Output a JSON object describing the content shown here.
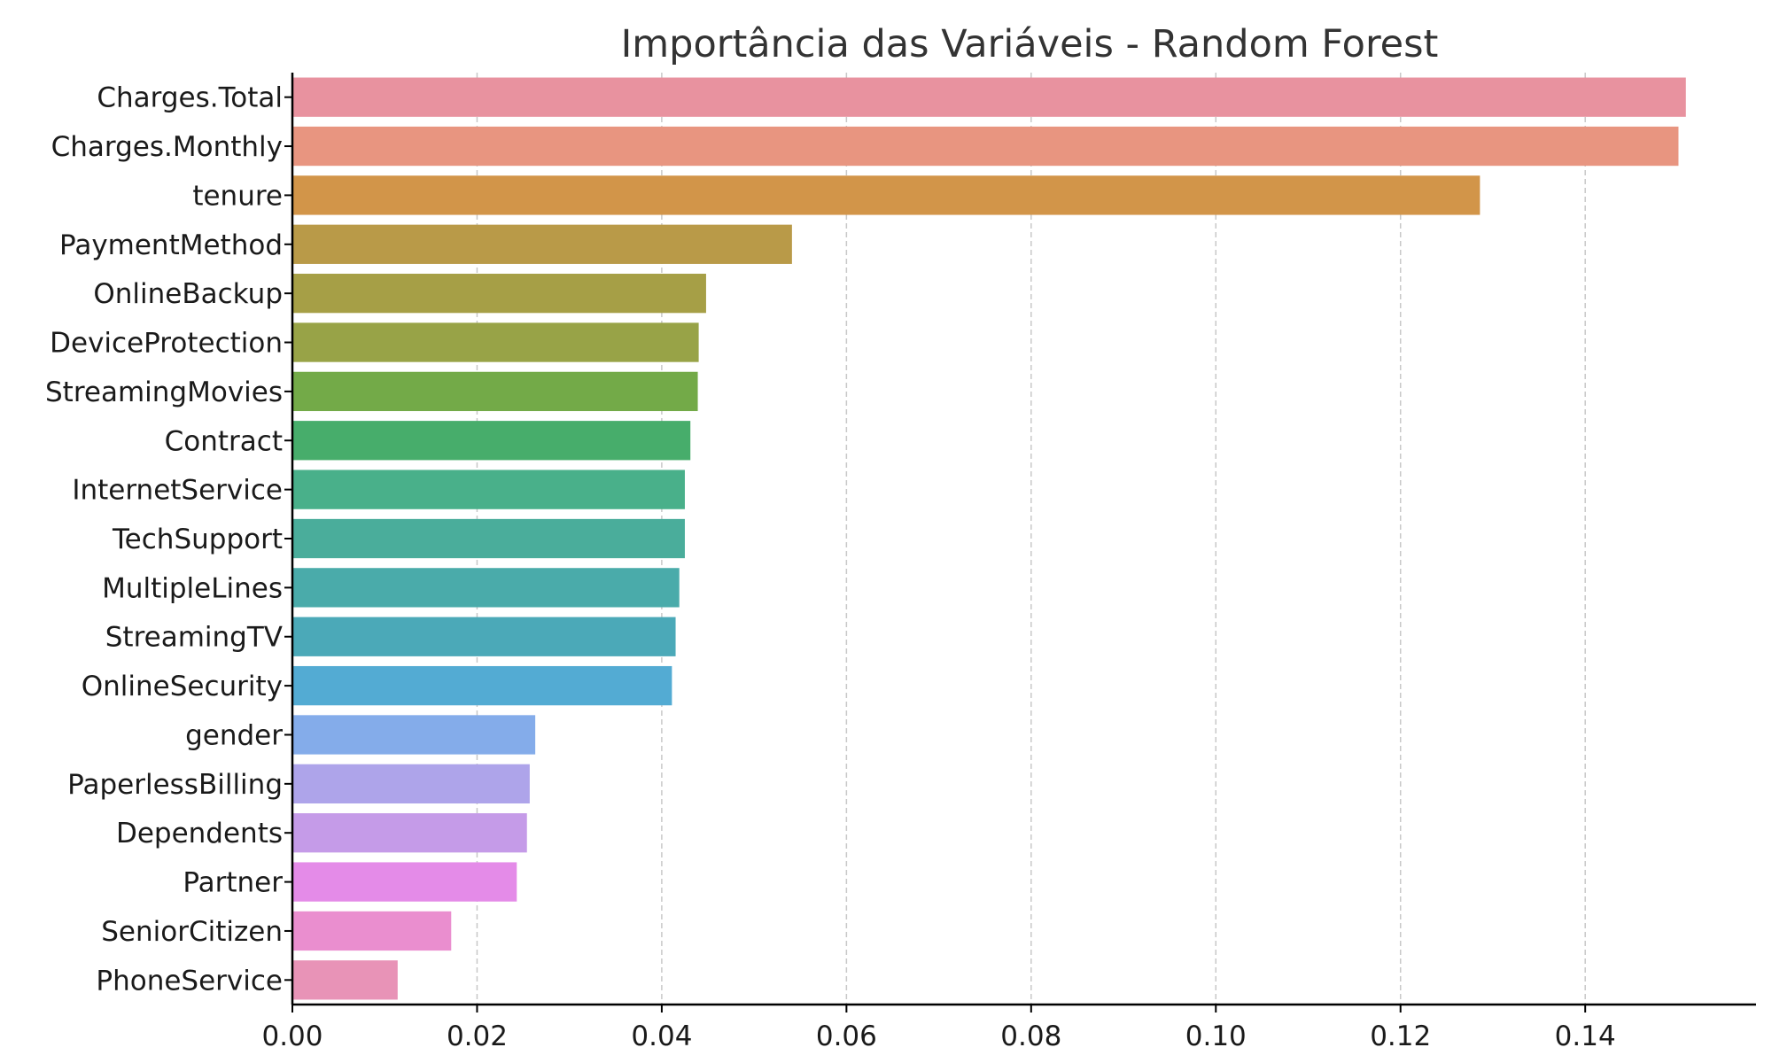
{
  "chart_data": {
    "type": "bar",
    "orientation": "horizontal",
    "title": "Importância das Variáveis - Random Forest",
    "xlabel": "",
    "ylabel": "",
    "xlim": [
      0,
      0.1585
    ],
    "xticks": [
      0.0,
      0.02,
      0.04,
      0.06,
      0.08,
      0.1,
      0.12,
      0.14
    ],
    "xtick_labels": [
      "0.00",
      "0.02",
      "0.04",
      "0.06",
      "0.08",
      "0.10",
      "0.12",
      "0.14"
    ],
    "grid": "x-dashed",
    "categories": [
      "Charges.Total",
      "Charges.Monthly",
      "tenure",
      "PaymentMethod",
      "OnlineBackup",
      "DeviceProtection",
      "StreamingMovies",
      "Contract",
      "InternetService",
      "TechSupport",
      "MultipleLines",
      "StreamingTV",
      "OnlineSecurity",
      "gender",
      "PaperlessBilling",
      "Dependents",
      "Partner",
      "SeniorCitizen",
      "PhoneService"
    ],
    "values": [
      0.1509,
      0.1501,
      0.1286,
      0.0541,
      0.0448,
      0.044,
      0.0439,
      0.0431,
      0.0425,
      0.0425,
      0.0419,
      0.0415,
      0.0411,
      0.0263,
      0.0257,
      0.0254,
      0.0243,
      0.0172,
      0.0114
    ],
    "colors": [
      "#e8929f",
      "#e89580",
      "#d29549",
      "#b99a48",
      "#a69f46",
      "#98a347",
      "#73aa48",
      "#47ad6b",
      "#49b08a",
      "#4aad9b",
      "#4aabaa",
      "#4ba9b8",
      "#53abd3",
      "#84acea",
      "#aea4ea",
      "#c59be8",
      "#e48be8",
      "#ea8ecf",
      "#e893b7"
    ]
  }
}
